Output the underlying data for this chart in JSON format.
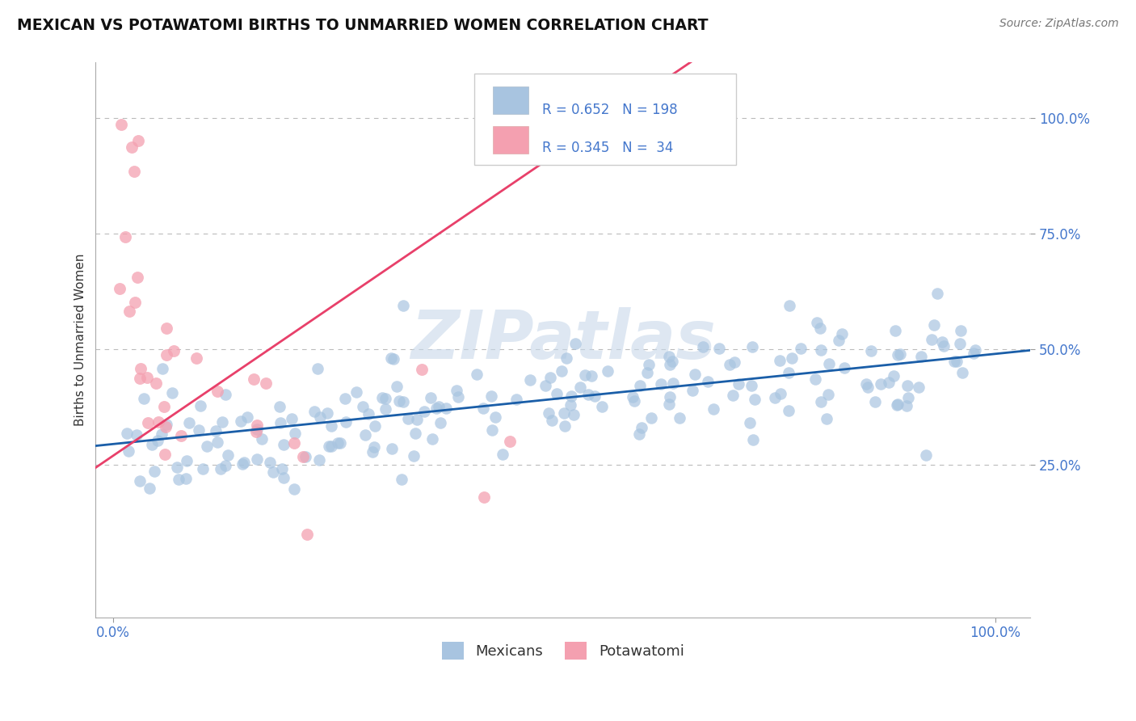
{
  "title": "MEXICAN VS POTAWATOMI BIRTHS TO UNMARRIED WOMEN CORRELATION CHART",
  "source": "Source: ZipAtlas.com",
  "ylabel": "Births to Unmarried Women",
  "R_mexican": 0.652,
  "N_mexican": 198,
  "R_potawatomi": 0.345,
  "N_potawatomi": 34,
  "blue_color": "#A8C4E0",
  "pink_color": "#F4A0B0",
  "blue_line_color": "#1A5EA8",
  "pink_line_color": "#E8406A",
  "watermark_color": "#C8D8EA",
  "grid_color": "#BBBBBB",
  "tick_color": "#4477CC",
  "y_ticks": [
    0.25,
    0.5,
    0.75,
    1.0
  ],
  "y_tick_labels": [
    "25.0%",
    "50.0%",
    "75.0%",
    "100.0%"
  ],
  "seed_mexican": 42,
  "seed_potawatomi": 77
}
